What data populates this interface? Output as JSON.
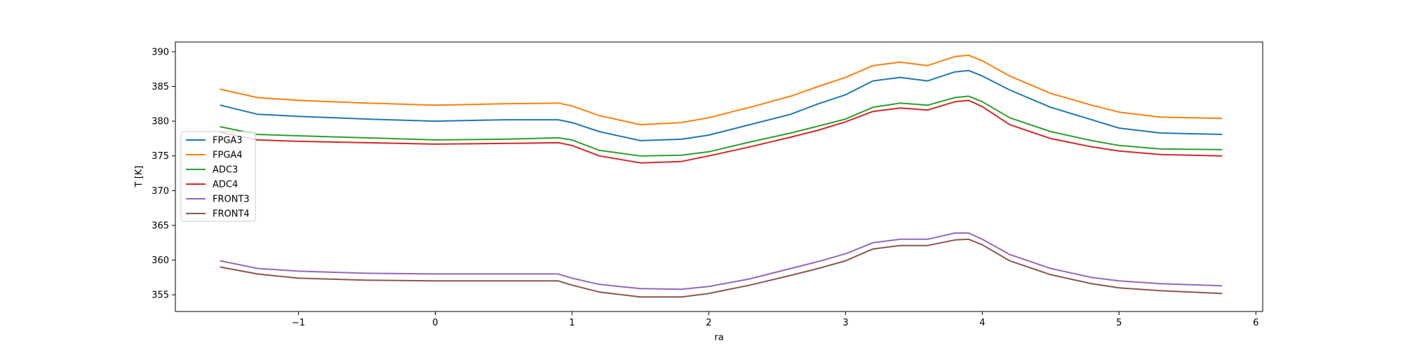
{
  "chart_data": {
    "type": "line",
    "xlabel": "ra",
    "ylabel": "T [K]",
    "xlim": [
      -1.9,
      6.05
    ],
    "ylim": [
      352.6,
      391.4
    ],
    "xticks": [
      -1,
      0,
      1,
      2,
      3,
      4,
      5,
      6
    ],
    "xtick_labels": [
      "−1",
      "0",
      "1",
      "2",
      "3",
      "4",
      "5",
      "6"
    ],
    "yticks": [
      355,
      360,
      365,
      370,
      375,
      380,
      385,
      390
    ],
    "ytick_labels": [
      "355",
      "360",
      "365",
      "370",
      "375",
      "380",
      "385",
      "390"
    ],
    "grid": false,
    "legend_position": "center-left",
    "x": [
      -1.57,
      -1.3,
      -1.0,
      -0.5,
      0.0,
      0.5,
      0.9,
      1.0,
      1.2,
      1.5,
      1.8,
      2.0,
      2.3,
      2.6,
      2.8,
      3.0,
      3.2,
      3.4,
      3.6,
      3.8,
      3.9,
      4.0,
      4.2,
      4.5,
      4.8,
      5.0,
      5.3,
      5.75
    ],
    "series": [
      {
        "name": "FPGA3",
        "color": "#1f77b4",
        "values": [
          382.3,
          381.0,
          380.7,
          380.3,
          380.0,
          380.2,
          380.2,
          379.8,
          378.5,
          377.2,
          377.4,
          378.0,
          379.5,
          381.0,
          382.5,
          383.8,
          385.8,
          386.3,
          385.8,
          387.1,
          387.3,
          386.5,
          384.5,
          382.0,
          380.2,
          379.0,
          378.3,
          378.1
        ]
      },
      {
        "name": "FPGA4",
        "color": "#ff7f0e",
        "values": [
          384.6,
          383.4,
          383.0,
          382.6,
          382.3,
          382.5,
          382.6,
          382.2,
          380.8,
          379.5,
          379.8,
          380.5,
          382.0,
          383.6,
          385.0,
          386.3,
          388.0,
          388.5,
          388.0,
          389.3,
          389.5,
          388.7,
          386.5,
          384.0,
          382.3,
          381.3,
          380.6,
          380.4
        ]
      },
      {
        "name": "ADC3",
        "color": "#2ca02c",
        "values": [
          379.2,
          378.1,
          377.9,
          377.6,
          377.3,
          377.4,
          377.6,
          377.3,
          375.8,
          375.0,
          375.1,
          375.6,
          377.0,
          378.3,
          379.3,
          380.3,
          382.0,
          382.6,
          382.3,
          383.4,
          383.6,
          382.8,
          380.5,
          378.5,
          377.2,
          376.5,
          376.0,
          375.9
        ]
      },
      {
        "name": "ADC4",
        "color": "#d62728",
        "values": [
          378.4,
          377.3,
          377.1,
          376.9,
          376.7,
          376.8,
          376.9,
          376.5,
          375.0,
          374.0,
          374.2,
          375.0,
          376.3,
          377.7,
          378.7,
          379.9,
          381.4,
          381.9,
          381.6,
          382.8,
          383.0,
          382.1,
          379.5,
          377.5,
          376.3,
          375.7,
          375.2,
          375.0
        ]
      },
      {
        "name": "FRONT3",
        "color": "#9467bd",
        "values": [
          359.9,
          358.8,
          358.4,
          358.1,
          358.0,
          358.0,
          358.0,
          357.4,
          356.5,
          355.9,
          355.8,
          356.2,
          357.3,
          358.8,
          359.8,
          360.9,
          362.5,
          363.0,
          363.0,
          363.9,
          363.9,
          363.0,
          360.8,
          358.8,
          357.5,
          357.0,
          356.6,
          356.3
        ]
      },
      {
        "name": "FRONT4",
        "color": "#8c564b",
        "values": [
          359.0,
          358.0,
          357.4,
          357.1,
          357.0,
          357.0,
          357.0,
          356.4,
          355.4,
          354.7,
          354.7,
          355.2,
          356.4,
          357.8,
          358.8,
          359.9,
          361.6,
          362.1,
          362.1,
          362.9,
          363.0,
          362.2,
          359.9,
          357.9,
          356.6,
          356.0,
          355.6,
          355.2
        ]
      }
    ]
  }
}
